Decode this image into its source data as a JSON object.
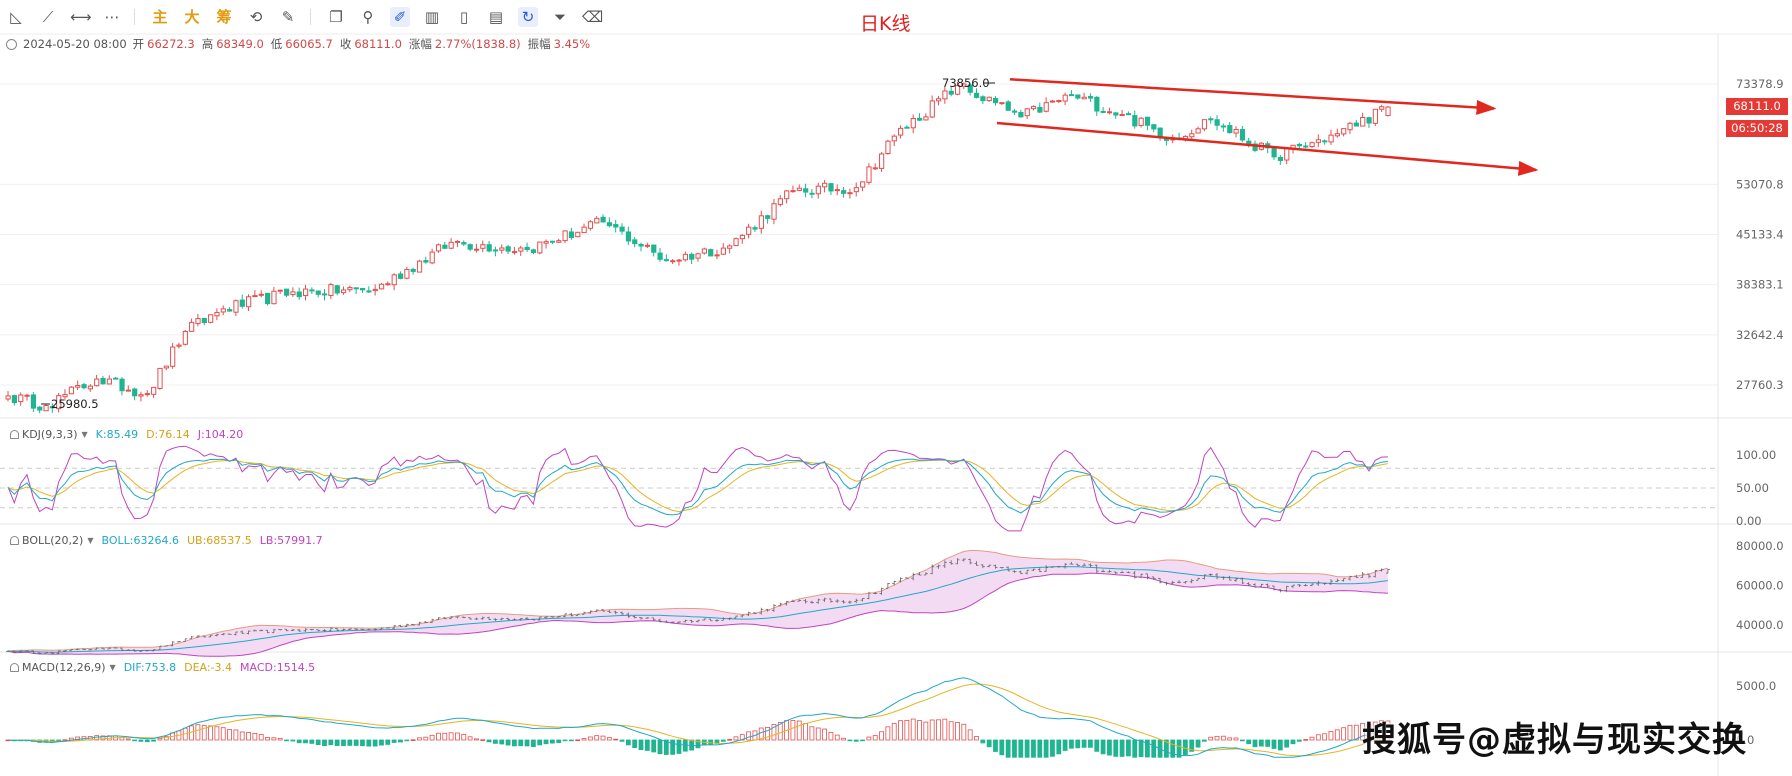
{
  "toolbar": {
    "tools": [
      "triangle-ruler-icon",
      "trend-line-icon",
      "horizontal-ray-icon",
      "more-dots-icon"
    ],
    "modes": [
      "主",
      "大",
      "筹"
    ],
    "tools2": [
      "lasso-icon",
      "eraser-pen-icon",
      "copy-icon",
      "link-icon",
      "brush-icon",
      "bar-grid-icon",
      "trash-can-icon",
      "note-icon",
      "magnet-icon",
      "filter-icon",
      "delete-icon"
    ]
  },
  "title": "日K线",
  "ohlc_info": {
    "datetime": "2024-05-20 08:00",
    "open_label": "开",
    "open": "66272.3",
    "high_label": "高",
    "high": "68349.0",
    "low_label": "低",
    "low": "66065.7",
    "close_label": "收",
    "close": "68111.0",
    "change_label": "涨幅",
    "change": "2.77%(1838.8)",
    "amp_label": "振幅",
    "amp": "3.45%"
  },
  "price_tags": {
    "last_price": "68111.0",
    "countdown": "06:50:28"
  },
  "kdj": {
    "name": "KDJ(9,3,3)",
    "k": "K:85.49",
    "d": "D:76.14",
    "j": "J:104.20"
  },
  "boll": {
    "name": "BOLL(20,2)",
    "mid": "BOLL:63264.6",
    "ub": "UB:68537.5",
    "lb": "LB:57991.7"
  },
  "macd": {
    "name": "MACD(12,26,9)",
    "dif": "DIF:753.8",
    "dea": "DEA:-3.4",
    "macd": "MACD:1514.5"
  },
  "watermark": "搜狐号@虚拟与现实交换",
  "colors": {
    "up": "#e35050",
    "down": "#1fb590",
    "arrow": "#e0281e",
    "k": "#20a8c8",
    "d": "#e6b422",
    "j": "#c044c0",
    "band_fill": "#f3dcf3",
    "accent": "#e53935"
  },
  "chart_data": [
    {
      "type": "candlestick",
      "title": "日K线",
      "y_scale": "log",
      "yticks": [
        27760.3,
        32642.4,
        38383.1,
        45133.4,
        53070.8,
        73378.9
      ],
      "yticks_text": [
        "27760.3",
        "32642.4",
        "38383.1",
        "45133.4",
        "53070.8",
        "73378.9"
      ],
      "annotations": {
        "max_label": "73856.0",
        "min_label": "25980.5"
      },
      "key_points": [
        {
          "i": 0,
          "c": 26800
        },
        {
          "i": 6,
          "c": 25980.5
        },
        {
          "i": 14,
          "c": 28300
        },
        {
          "i": 22,
          "c": 27000
        },
        {
          "i": 28,
          "c": 33000
        },
        {
          "i": 34,
          "c": 35500
        },
        {
          "i": 45,
          "c": 37500
        },
        {
          "i": 58,
          "c": 37800
        },
        {
          "i": 70,
          "c": 44000
        },
        {
          "i": 82,
          "c": 43000
        },
        {
          "i": 94,
          "c": 47000
        },
        {
          "i": 104,
          "c": 41500
        },
        {
          "i": 114,
          "c": 43500
        },
        {
          "i": 124,
          "c": 52000
        },
        {
          "i": 134,
          "c": 52500
        },
        {
          "i": 140,
          "c": 62000
        },
        {
          "i": 150,
          "c": 73000
        },
        {
          "i": 160,
          "c": 66000
        },
        {
          "i": 168,
          "c": 70800
        },
        {
          "i": 176,
          "c": 66500
        },
        {
          "i": 184,
          "c": 61500
        },
        {
          "i": 190,
          "c": 65500
        },
        {
          "i": 200,
          "c": 58000
        },
        {
          "i": 210,
          "c": 62500
        },
        {
          "i": 218,
          "c": 68111
        }
      ],
      "last_bar": {
        "open": 66272.3,
        "high": 68349.0,
        "low": 66065.7,
        "close": 68111.0
      },
      "trend_channel": {
        "upper": {
          "from_price": 74500,
          "to_price": 67800
        },
        "lower": {
          "from_price": 64700,
          "to_price": 55600
        }
      }
    },
    {
      "type": "line",
      "title": "KDJ(9,3,3)",
      "yticks": [
        0,
        50,
        100
      ],
      "yticks_text": [
        "0.00",
        "50.00",
        "100.00"
      ],
      "series": [
        {
          "name": "K",
          "last": 85.49
        },
        {
          "name": "D",
          "last": 76.14
        },
        {
          "name": "J",
          "last": 104.2
        }
      ]
    },
    {
      "type": "band",
      "title": "BOLL(20,2)",
      "yticks": [
        40000,
        60000,
        80000
      ],
      "yticks_text": [
        "40000.0",
        "60000.0",
        "80000.0"
      ],
      "series": [
        {
          "name": "BOLL",
          "last": 63264.6
        },
        {
          "name": "UB",
          "last": 68537.5
        },
        {
          "name": "LB",
          "last": 57991.7
        }
      ]
    },
    {
      "type": "bar",
      "title": "MACD(12,26,9)",
      "yticks": [
        0,
        5000
      ],
      "yticks_text": [
        "0.0",
        "5000.0"
      ],
      "series": [
        {
          "name": "DIF",
          "last": 753.8
        },
        {
          "name": "DEA",
          "last": -3.4
        },
        {
          "name": "MACD",
          "last": 1514.5
        }
      ]
    }
  ]
}
